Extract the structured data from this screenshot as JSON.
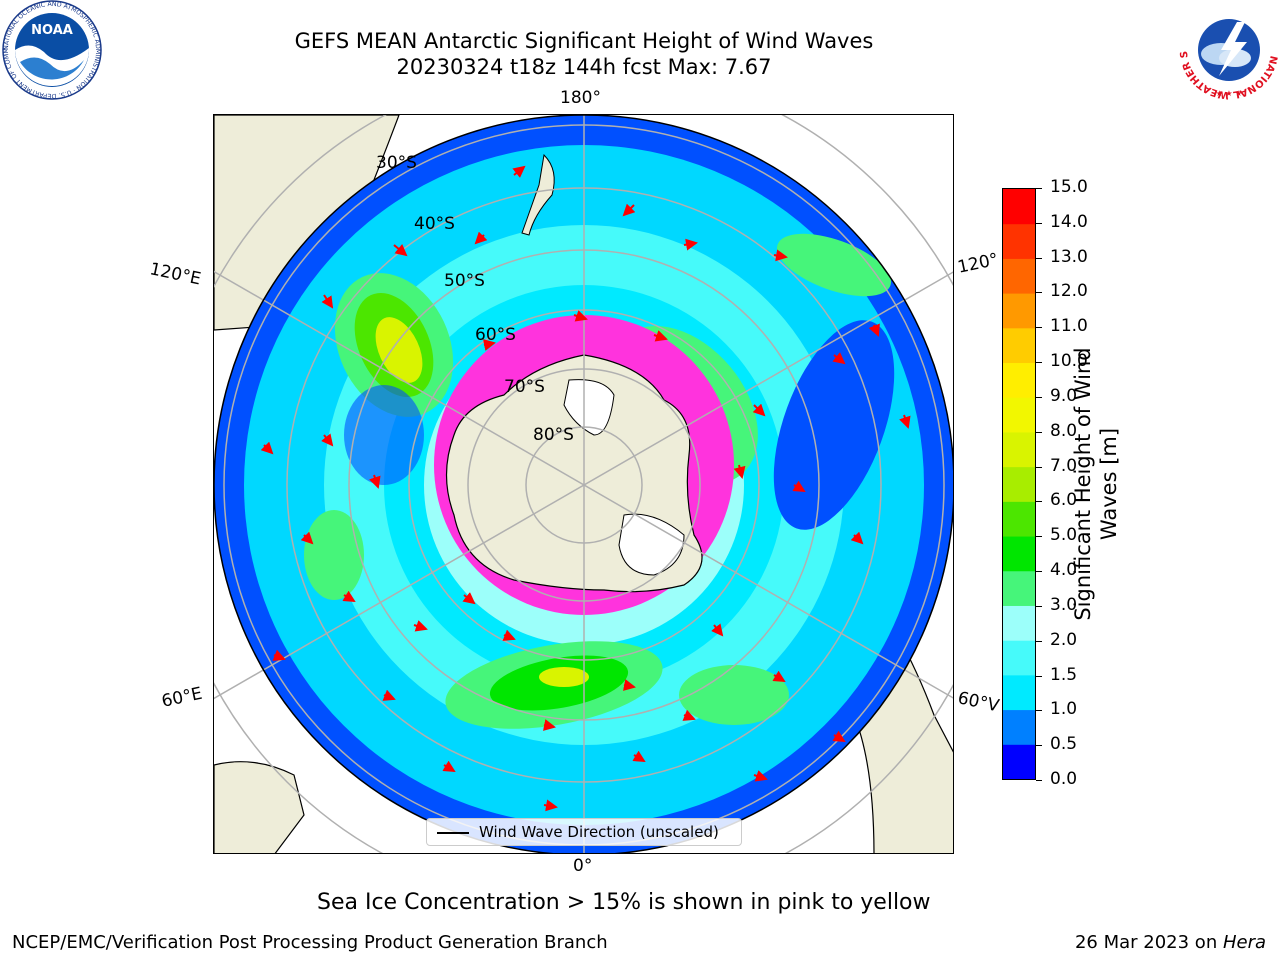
{
  "header": {
    "title_line1": "GEFS MEAN Antarctic Significant Height of Wind Waves",
    "title_line2": "20230324 t18z 144h fcst   Max: 7.67"
  },
  "logos": {
    "noara_text": "NOAA",
    "noaa_ring_text": "NATIONAL OCEANIC AND ATMOSPHERIC ADMINISTRATION · U.S. DEPARTMENT OF COMMERCE",
    "nws_ring_text": "NATIONAL WEATHER SERVICE"
  },
  "map": {
    "lon_labels": {
      "top": "180°",
      "bottom": "0°",
      "upper_left": "120°E",
      "upper_right": "120°",
      "lower_left": "60°E",
      "lower_right": "60°V"
    },
    "lat_labels": [
      "30°S",
      "40°S",
      "50°S",
      "60°S",
      "70°S",
      "80°S"
    ],
    "legend_label": "Wind Wave Direction (unscaled)",
    "colors": {
      "land": "#eeedd9",
      "ocean_low": "#0000ff",
      "arrow": "#ff0000",
      "sea_ice": "#ff33dd",
      "grid": "#b0b0b0"
    }
  },
  "colorbar": {
    "label": "Significant Height of Wind Waves [m]",
    "label_line1": "Significant Height of Wind",
    "label_line2": "Waves [m]",
    "ticks": [
      "0.0",
      "0.5",
      "1.0",
      "1.5",
      "2.0",
      "3.0",
      "4.0",
      "5.0",
      "6.0",
      "7.0",
      "8.0",
      "9.0",
      "10.0",
      "11.0",
      "12.0",
      "13.0",
      "14.0",
      "15.0"
    ],
    "colors": [
      "#0000ff",
      "#0080ff",
      "#00eaff",
      "#46fafa",
      "#9cfffa",
      "#46f57a",
      "#00e600",
      "#4ce600",
      "#a8ed00",
      "#d9f400",
      "#f2f700",
      "#ffee00",
      "#ffcc00",
      "#ff9900",
      "#ff6600",
      "#ff3300",
      "#ff0000"
    ]
  },
  "notes": {
    "sea_ice_note": "Sea Ice Concentration > 15% is shown in pink to yellow",
    "footer_left": "NCEP/EMC/Verification Post Processing Product Generation Branch",
    "footer_right_prefix": "26 Mar 2023 on ",
    "footer_right_machine": "Hera"
  }
}
